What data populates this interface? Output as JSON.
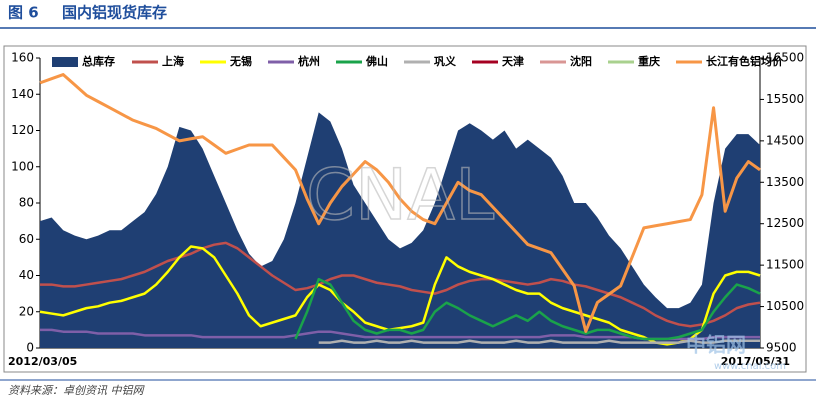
{
  "header": {
    "figure": "图 6",
    "title": "国内铝现货库存"
  },
  "source": "资料来源：卓创资讯   中铝网",
  "watermarks": [
    "CNAL",
    "中铝网",
    "www.cnal.com"
  ],
  "chart_data": {
    "type": "line",
    "categories": [
      "2012/03/05",
      null,
      null,
      null,
      null,
      null,
      null,
      null,
      null,
      null,
      null,
      null,
      null,
      null,
      null,
      null,
      null,
      null,
      null,
      null,
      null,
      null,
      null,
      null,
      null,
      null,
      null,
      null,
      null,
      null,
      null,
      null,
      null,
      null,
      null,
      null,
      null,
      null,
      null,
      null,
      null,
      null,
      null,
      null,
      null,
      null,
      null,
      null,
      null,
      null,
      null,
      null,
      null,
      null,
      null,
      null,
      null,
      null,
      null,
      null,
      null,
      null,
      "2017/05/31"
    ],
    "ylim": [
      0,
      160
    ],
    "yticks": [
      0,
      20,
      40,
      60,
      80,
      100,
      120,
      140,
      160
    ],
    "y2lim": [
      9500,
      16500
    ],
    "y2ticks": [
      9500,
      10500,
      11500,
      12500,
      13500,
      14500,
      15500,
      16500
    ],
    "grid": false,
    "legend": "top",
    "series": [
      {
        "name": "总库存",
        "kind": "area",
        "color": "#1f3f73",
        "values": [
          70,
          72,
          65,
          62,
          60,
          62,
          65,
          65,
          70,
          75,
          85,
          100,
          122,
          120,
          110,
          95,
          80,
          65,
          52,
          45,
          48,
          60,
          80,
          105,
          130,
          125,
          110,
          90,
          80,
          70,
          60,
          55,
          58,
          65,
          80,
          100,
          120,
          124,
          120,
          115,
          120,
          110,
          115,
          110,
          105,
          95,
          80,
          80,
          72,
          62,
          55,
          45,
          35,
          28,
          22,
          22,
          25,
          35,
          80,
          110,
          118,
          118,
          112
        ]
      },
      {
        "name": "上海",
        "color": "#c0504d",
        "values": [
          35,
          35,
          34,
          34,
          35,
          36,
          37,
          38,
          40,
          42,
          45,
          48,
          50,
          52,
          55,
          57,
          58,
          55,
          50,
          45,
          40,
          36,
          32,
          33,
          35,
          38,
          40,
          40,
          38,
          36,
          35,
          34,
          32,
          31,
          30,
          32,
          35,
          37,
          38,
          38,
          37,
          36,
          35,
          36,
          38,
          37,
          35,
          34,
          32,
          30,
          28,
          25,
          22,
          18,
          15,
          13,
          12,
          13,
          15,
          18,
          22,
          24,
          25
        ]
      },
      {
        "name": "无锡",
        "color": "#ffff00",
        "values": [
          20,
          19,
          18,
          20,
          22,
          23,
          25,
          26,
          28,
          30,
          35,
          42,
          50,
          56,
          55,
          50,
          40,
          30,
          18,
          12,
          14,
          16,
          18,
          28,
          35,
          32,
          25,
          20,
          14,
          12,
          10,
          11,
          12,
          14,
          35,
          50,
          45,
          42,
          40,
          38,
          35,
          32,
          30,
          30,
          25,
          22,
          20,
          18,
          16,
          14,
          10,
          8,
          6,
          3,
          2,
          3,
          5,
          10,
          30,
          40,
          42,
          42,
          40
        ]
      },
      {
        "name": "杭州",
        "color": "#7f5fa8",
        "values": [
          10,
          10,
          9,
          9,
          9,
          8,
          8,
          8,
          8,
          7,
          7,
          7,
          7,
          7,
          6,
          6,
          6,
          6,
          6,
          6,
          6,
          6,
          7,
          8,
          9,
          9,
          8,
          7,
          6,
          6,
          6,
          6,
          6,
          6,
          6,
          6,
          6,
          6,
          6,
          6,
          6,
          6,
          6,
          6,
          7,
          7,
          7,
          6,
          6,
          6,
          6,
          6,
          5,
          5,
          5,
          5,
          5,
          5,
          6,
          6,
          6,
          6,
          6
        ]
      },
      {
        "name": "佛山",
        "color": "#1aa34a",
        "values": [
          null,
          null,
          null,
          null,
          null,
          null,
          null,
          null,
          null,
          null,
          null,
          null,
          null,
          null,
          null,
          null,
          null,
          null,
          null,
          null,
          null,
          null,
          5,
          20,
          38,
          35,
          25,
          15,
          10,
          8,
          10,
          10,
          8,
          10,
          20,
          25,
          22,
          18,
          15,
          12,
          15,
          18,
          15,
          20,
          15,
          12,
          10,
          8,
          10,
          10,
          8,
          6,
          5,
          5,
          5,
          6,
          8,
          10,
          20,
          28,
          35,
          33,
          30
        ]
      },
      {
        "name": "巩义",
        "color": "#b0b0b0",
        "values": [
          null,
          null,
          null,
          null,
          null,
          null,
          null,
          null,
          null,
          null,
          null,
          null,
          null,
          null,
          null,
          null,
          null,
          null,
          null,
          null,
          null,
          null,
          null,
          null,
          3,
          3,
          4,
          3,
          3,
          4,
          3,
          3,
          4,
          3,
          3,
          3,
          3,
          4,
          3,
          3,
          3,
          4,
          3,
          3,
          4,
          3,
          3,
          3,
          3,
          4,
          3,
          3,
          3,
          3,
          3,
          3,
          4,
          3,
          3,
          4,
          4,
          4,
          4
        ]
      },
      {
        "name": "天津",
        "color": "#a50021",
        "values": [
          null,
          null,
          null,
          null,
          null,
          null,
          null,
          null,
          null,
          null,
          null,
          null,
          null,
          null,
          null,
          null,
          null,
          null,
          null,
          null,
          null,
          null,
          null,
          null,
          null,
          null,
          null,
          null,
          null,
          null,
          null,
          null,
          null,
          null,
          null,
          null,
          null,
          null,
          null,
          null,
          null,
          null,
          null,
          null,
          null,
          null,
          null,
          null,
          null,
          null,
          null,
          null,
          null,
          null,
          null,
          null,
          null,
          null,
          null,
          null,
          null,
          null,
          null
        ]
      },
      {
        "name": "沈阳",
        "color": "#d99694",
        "values": [
          null,
          null,
          null,
          null,
          null,
          null,
          null,
          null,
          null,
          null,
          null,
          null,
          null,
          null,
          null,
          null,
          null,
          null,
          null,
          null,
          null,
          null,
          null,
          null,
          null,
          null,
          null,
          null,
          null,
          null,
          null,
          null,
          null,
          null,
          null,
          null,
          null,
          null,
          null,
          null,
          null,
          null,
          null,
          null,
          null,
          null,
          null,
          null,
          null,
          null,
          null,
          null,
          null,
          null,
          null,
          null,
          null,
          null,
          null,
          null,
          null,
          null,
          null
        ]
      },
      {
        "name": "重庆",
        "color": "#a9d18e",
        "values": [
          null,
          null,
          null,
          null,
          null,
          null,
          null,
          null,
          null,
          null,
          null,
          null,
          null,
          null,
          null,
          null,
          null,
          null,
          null,
          null,
          null,
          null,
          null,
          null,
          null,
          null,
          null,
          null,
          null,
          null,
          null,
          null,
          null,
          null,
          null,
          null,
          null,
          null,
          null,
          null,
          null,
          null,
          null,
          null,
          null,
          null,
          null,
          null,
          null,
          null,
          null,
          null,
          null,
          null,
          null,
          null,
          null,
          null,
          null,
          null,
          null,
          null,
          null
        ]
      },
      {
        "name": "长江有色铝均价",
        "color": "#f79646",
        "axis": "y2",
        "values": [
          15900,
          16000,
          16100,
          15850,
          15600,
          15450,
          15300,
          15150,
          15000,
          14900,
          14800,
          14650,
          14500,
          14550,
          14600,
          14400,
          14200,
          14300,
          14400,
          14400,
          14400,
          14100,
          13800,
          13100,
          12500,
          13000,
          13400,
          13700,
          14000,
          13800,
          13500,
          13100,
          12800,
          12600,
          12500,
          13000,
          13500,
          13300,
          13200,
          12900,
          12600,
          12300,
          12000,
          11900,
          11800,
          11400,
          11000,
          9900,
          10600,
          10800,
          11000,
          11700,
          12400,
          12450,
          12500,
          12550,
          12600,
          13200,
          15300,
          12800,
          13600,
          14000,
          13800
        ]
      }
    ]
  }
}
